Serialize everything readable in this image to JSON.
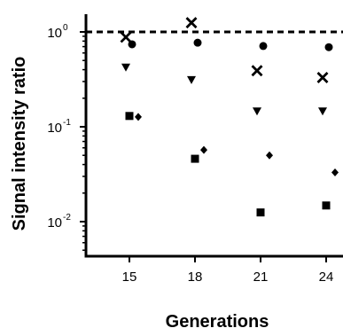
{
  "chart_data": {
    "type": "scatter",
    "title": "",
    "xlabel": "Generations",
    "ylabel": "Signal intensity ratio",
    "x": [
      15,
      18,
      21,
      24
    ],
    "xlim": [
      13,
      25
    ],
    "ylim": [
      0.005,
      1.5
    ],
    "yscale": "log",
    "yticks": [
      {
        "value": 1,
        "base": "10",
        "exp": "0"
      },
      {
        "value": 0.1,
        "base": "10",
        "exp": "-1"
      },
      {
        "value": 0.01,
        "base": "10",
        "exp": "-2"
      }
    ],
    "reference_line": {
      "y": 1,
      "style": "dashed"
    },
    "grid": false,
    "legend": "none",
    "series": [
      {
        "marker": "circle",
        "points": [
          [
            15,
            0.74
          ],
          [
            18,
            0.77
          ],
          [
            21,
            0.71
          ],
          [
            24,
            0.69
          ]
        ]
      },
      {
        "marker": "cross",
        "points": [
          [
            15,
            0.88
          ],
          [
            18,
            1.25
          ],
          [
            21,
            0.39
          ],
          [
            24,
            0.33
          ]
        ]
      },
      {
        "marker": "triangle-down",
        "points": [
          [
            15,
            0.42
          ],
          [
            18,
            0.31
          ],
          [
            21,
            0.145
          ],
          [
            24,
            0.145
          ]
        ]
      },
      {
        "marker": "diamond",
        "points": [
          [
            15,
            0.127
          ],
          [
            18,
            0.057
          ],
          [
            21,
            0.05
          ],
          [
            24,
            0.033
          ]
        ]
      },
      {
        "marker": "square",
        "points": [
          [
            15,
            0.13
          ],
          [
            18,
            0.046
          ],
          [
            21,
            0.0125
          ],
          [
            24,
            0.0148
          ]
        ]
      }
    ]
  }
}
